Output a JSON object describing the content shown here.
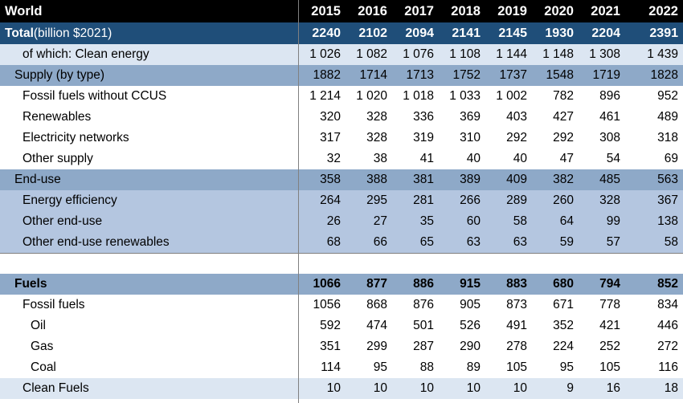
{
  "header": {
    "title": "World",
    "years": [
      "2015",
      "2016",
      "2017",
      "2018",
      "2019",
      "2020",
      "2021",
      "2022"
    ]
  },
  "total": {
    "label_bold": "Total",
    "label_rest": " (billion $2021)",
    "values": [
      "2240",
      "2102",
      "2094",
      "2141",
      "2145",
      "1930",
      "2204",
      "2391"
    ]
  },
  "clean": {
    "label": "of which: Clean energy",
    "values": [
      "1 026",
      "1 082",
      "1 076",
      "1 108",
      "1 144",
      "1 148",
      "1 308",
      "1 439"
    ]
  },
  "supply": {
    "label": "Supply (by type)",
    "values": [
      "1882",
      "1714",
      "1713",
      "1752",
      "1737",
      "1548",
      "1719",
      "1828"
    ]
  },
  "fossil_no_ccus": {
    "label": "Fossil fuels without CCUS",
    "values": [
      "1 214",
      "1 020",
      "1 018",
      "1 033",
      "1 002",
      "782",
      "896",
      "952"
    ]
  },
  "renewables": {
    "label": "Renewables",
    "values": [
      "320",
      "328",
      "336",
      "369",
      "403",
      "427",
      "461",
      "489"
    ]
  },
  "networks": {
    "label": "Electricity networks",
    "values": [
      "317",
      "328",
      "319",
      "310",
      "292",
      "292",
      "308",
      "318"
    ]
  },
  "other_supply": {
    "label": "Other supply",
    "values": [
      "32",
      "38",
      "41",
      "40",
      "40",
      "47",
      "54",
      "69"
    ]
  },
  "end_use": {
    "label": "End-use",
    "values": [
      "358",
      "388",
      "381",
      "389",
      "409",
      "382",
      "485",
      "563"
    ]
  },
  "efficiency": {
    "label": "Energy efficiency",
    "values": [
      "264",
      "295",
      "281",
      "266",
      "289",
      "260",
      "328",
      "367"
    ]
  },
  "other_end_use": {
    "label": "Other end-use",
    "values": [
      "26",
      "27",
      "35",
      "60",
      "58",
      "64",
      "99",
      "138"
    ]
  },
  "end_use_renew": {
    "label": "Other end-use renewables",
    "values": [
      "68",
      "66",
      "65",
      "63",
      "63",
      "59",
      "57",
      "58"
    ]
  },
  "fuels": {
    "label": "Fuels",
    "values": [
      "1066",
      "877",
      "886",
      "915",
      "883",
      "680",
      "794",
      "852"
    ]
  },
  "fossil_fuels": {
    "label": "Fossil fuels",
    "values": [
      "1056",
      "868",
      "876",
      "905",
      "873",
      "671",
      "778",
      "834"
    ]
  },
  "oil": {
    "label": "Oil",
    "values": [
      "592",
      "474",
      "501",
      "526",
      "491",
      "352",
      "421",
      "446"
    ]
  },
  "gas": {
    "label": "Gas",
    "values": [
      "351",
      "299",
      "287",
      "290",
      "278",
      "224",
      "252",
      "272"
    ]
  },
  "coal": {
    "label": "Coal",
    "values": [
      "114",
      "95",
      "88",
      "89",
      "105",
      "95",
      "105",
      "116"
    ]
  },
  "clean_fuels": {
    "label": "Clean Fuels",
    "values": [
      "10",
      "10",
      "10",
      "10",
      "10",
      "9",
      "16",
      "18"
    ]
  }
}
